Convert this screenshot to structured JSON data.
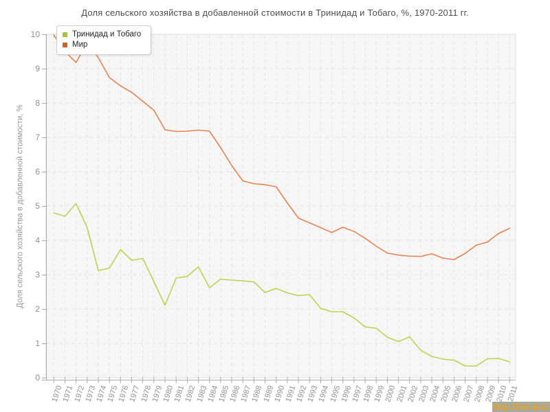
{
  "watermark": "http://be5.biz/",
  "chart_data": {
    "type": "line",
    "title": "Доля сельского хозяйства в добавленной стоимости в Тринидад и Тобаго, %, 1970-2011 гг.",
    "xlabel": "",
    "ylabel": "Доля сельского хозяйства в добавленной стоимости, %",
    "ylim": [
      0,
      10
    ],
    "y_ticks": [
      0,
      1,
      2,
      3,
      4,
      5,
      6,
      7,
      8,
      9,
      10
    ],
    "grid": true,
    "grid_color": "#e3e3e3",
    "plot_bg_color": "#f6f6f6",
    "axis_color": "#aaaaaa",
    "legend_position": "top-left",
    "x": [
      1970,
      1971,
      1972,
      1973,
      1974,
      1975,
      1976,
      1977,
      1978,
      1979,
      1980,
      1981,
      1982,
      1983,
      1984,
      1985,
      1986,
      1987,
      1988,
      1989,
      1990,
      1991,
      1992,
      1993,
      1994,
      1995,
      1996,
      1997,
      1998,
      1999,
      2000,
      2001,
      2002,
      2003,
      2004,
      2005,
      2006,
      2007,
      2008,
      2009,
      2010,
      2011
    ],
    "series": [
      {
        "name": "Тринидад и Тобаго",
        "color": "#b9d34f",
        "swatch_color": "#a3c434",
        "values": [
          4.8,
          4.7,
          5.07,
          4.37,
          3.12,
          3.19,
          3.73,
          3.42,
          3.47,
          2.8,
          2.11,
          2.9,
          2.95,
          3.23,
          2.62,
          2.87,
          2.84,
          2.82,
          2.79,
          2.48,
          2.6,
          2.47,
          2.39,
          2.42,
          2.02,
          1.92,
          1.92,
          1.74,
          1.48,
          1.44,
          1.18,
          1.05,
          1.19,
          0.8,
          0.62,
          0.54,
          0.51,
          0.34,
          0.34,
          0.55,
          0.56,
          0.46
        ]
      },
      {
        "name": "Мир",
        "color": "#e8814e",
        "swatch_color": "#dd5e27",
        "values": [
          9.98,
          9.5,
          9.18,
          9.75,
          9.32,
          8.74,
          8.5,
          8.31,
          8.05,
          7.79,
          7.22,
          7.17,
          7.18,
          7.21,
          7.18,
          6.7,
          6.18,
          5.73,
          5.65,
          5.62,
          5.56,
          5.09,
          4.65,
          4.51,
          4.37,
          4.23,
          4.38,
          4.26,
          4.06,
          3.83,
          3.63,
          3.57,
          3.54,
          3.53,
          3.61,
          3.48,
          3.44,
          3.62,
          3.86,
          3.95,
          4.2,
          4.35
        ]
      }
    ]
  }
}
